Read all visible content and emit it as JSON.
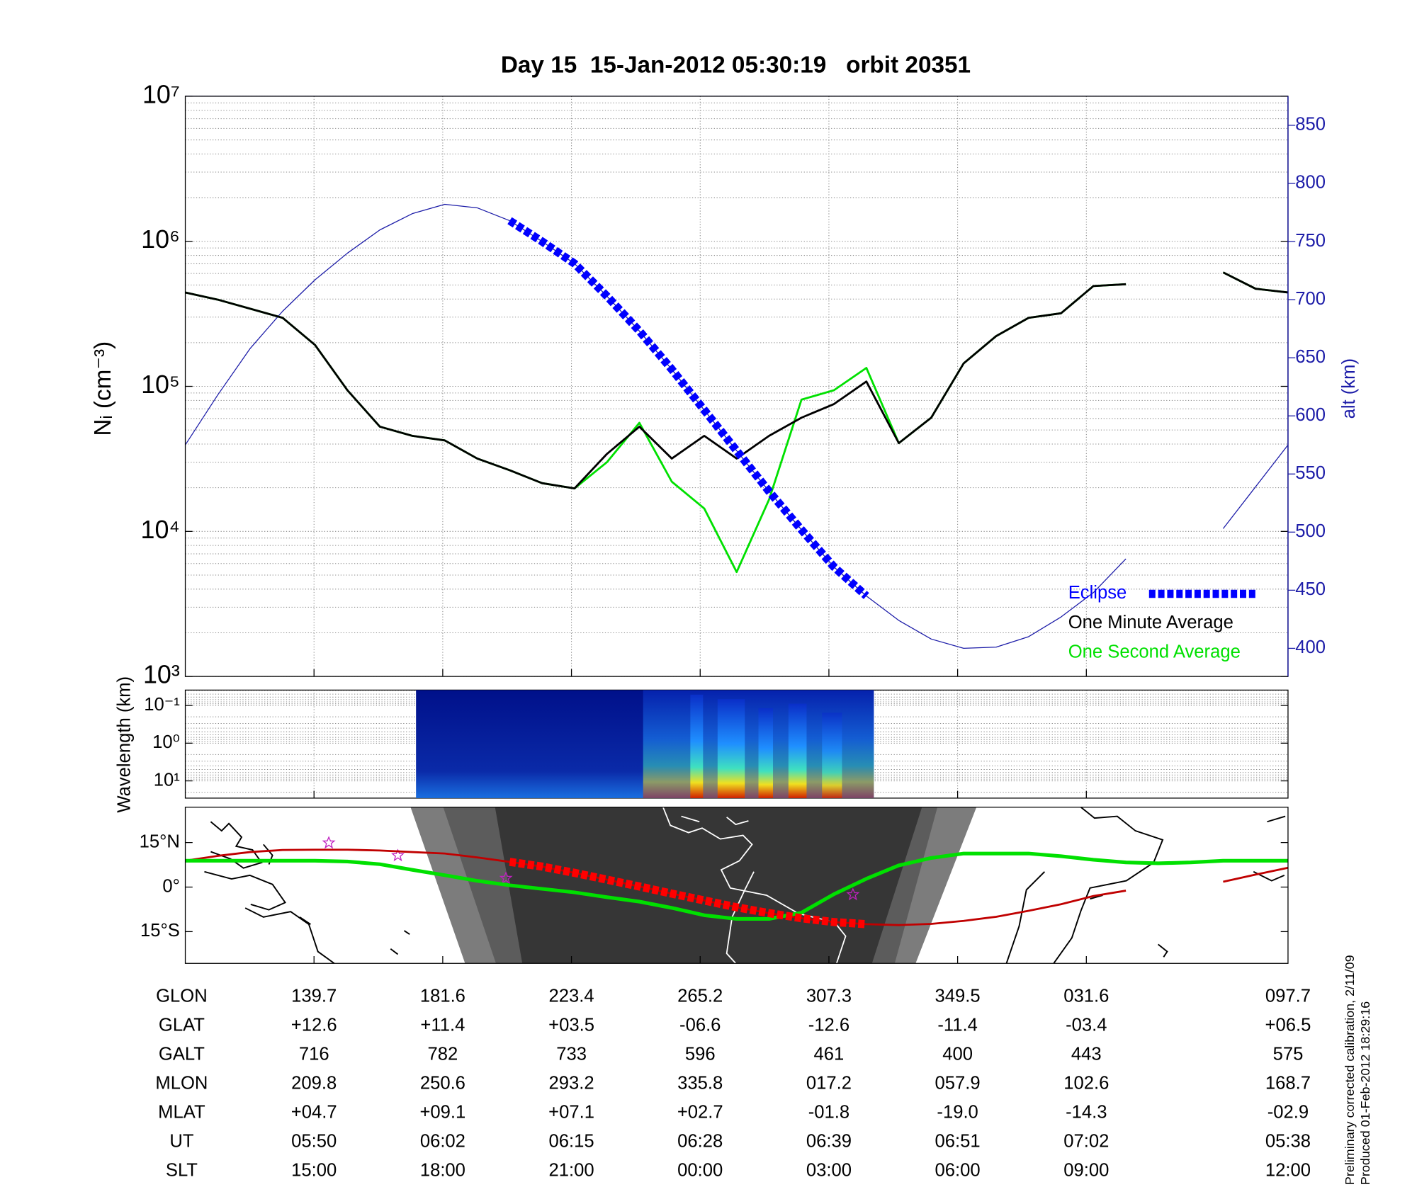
{
  "chart_data": [
    {
      "type": "line",
      "title": "Day 15  15-Jan-2012 05:30:19   orbit 20351",
      "ylabel": "Nᵢ (cm⁻³)",
      "y2label": "alt (km)",
      "yscale": "log",
      "ylim": [
        1000,
        10000000
      ],
      "yticks": [
        {
          "value": 1000,
          "label": "10³"
        },
        {
          "value": 10000,
          "label": "10⁴"
        },
        {
          "value": 100000,
          "label": "10⁵"
        },
        {
          "value": 1000000,
          "label": "10⁶"
        },
        {
          "value": 10000000,
          "label": "10⁷"
        }
      ],
      "y2lim": [
        375.8,
        875
      ],
      "y2ticks": [
        400,
        450,
        500,
        550,
        600,
        650,
        700,
        750,
        800,
        850
      ],
      "grid": true,
      "legend": "lower right",
      "series": [
        {
          "color": "#1c1ca8",
          "axis": "y2",
          "values": [
            575,
            618,
            658,
            690,
            717,
            740,
            760,
            774,
            782,
            779,
            768,
            750,
            731,
            703,
            673,
            640,
            605,
            570,
            535,
            502,
            470,
            445,
            424,
            408,
            400,
            401,
            410,
            427,
            448,
            477,
            null,
            null,
            503,
            539,
            575
          ]
        },
        {
          "name": "One Second Average",
          "color": "#00e000",
          "values": [
            444000,
            396000,
            343000,
            297000,
            193000,
            94000,
            52700,
            45600,
            42400,
            31800,
            26400,
            21500,
            19800,
            30000,
            56000,
            22000,
            14400,
            5250,
            16600,
            81000,
            94000,
            134000,
            40600,
            60800,
            144000,
            222000,
            297000,
            319000,
            492000,
            506000,
            null,
            null,
            610000,
            471000,
            444000
          ]
        },
        {
          "name": "One Minute Average",
          "color": "#000000",
          "values": [
            444000,
            396000,
            343000,
            297000,
            193000,
            94000,
            52700,
            45600,
            42400,
            31800,
            26400,
            21500,
            19800,
            34200,
            52700,
            31800,
            45600,
            31800,
            45600,
            60800,
            75500,
            108000,
            40600,
            60800,
            144000,
            222000,
            297000,
            319000,
            492000,
            506000,
            null,
            null,
            610000,
            471000,
            444000
          ]
        },
        {
          "name": "Eclipse",
          "color": "#0000ff",
          "axis": "y2",
          "style": "dotted",
          "values": [
            null,
            null,
            null,
            null,
            null,
            null,
            null,
            null,
            null,
            null,
            768,
            750,
            731,
            703,
            673,
            640,
            605,
            570,
            535,
            502,
            470,
            445,
            null,
            null,
            null,
            null,
            null,
            null,
            null,
            null,
            null,
            null,
            null,
            null,
            null
          ]
        }
      ],
      "legend_order": [
        "Eclipse",
        "One Minute Average",
        "One Second Average"
      ]
    },
    {
      "type": "spectrogram",
      "ylabel": "Wavelength (km)",
      "yscale": "log",
      "ylim": [
        0.039,
        28.7
      ],
      "yreverse": true,
      "yticks": [
        {
          "value": 0.1,
          "label": "10⁻¹"
        },
        {
          "value": 1,
          "label": "10⁰"
        },
        {
          "value": 10,
          "label": "10¹"
        }
      ],
      "grid": true
    },
    {
      "type": "line",
      "ylim": [
        -25.7,
        26.9
      ],
      "yticks": [
        {
          "value": 15,
          "label": "15°N"
        },
        {
          "value": 0,
          "label": "0°"
        },
        {
          "value": -15,
          "label": "15°S"
        }
      ],
      "series": [
        {
          "color": "#c00000",
          "values": [
            8.9,
            10.5,
            11.8,
            12.5,
            12.6,
            12.6,
            12.3,
            11.8,
            11.3,
            10.0,
            8.5,
            6.9,
            4.8,
            2.5,
            0.2,
            -2.2,
            -4.5,
            -6.8,
            -8.8,
            -10.5,
            -11.8,
            -12.5,
            -12.8,
            -12.4,
            -11.4,
            -10.0,
            -8.0,
            -5.8,
            -3.0,
            -1.2,
            null,
            null,
            1.8,
            4.2,
            6.5
          ]
        },
        {
          "color": "#00e000",
          "values": [
            8.9,
            8.9,
            8.9,
            8.9,
            8.9,
            8.6,
            7.7,
            5.8,
            4.0,
            2.1,
            0.6,
            -0.6,
            -1.8,
            -3.4,
            -4.9,
            -7.0,
            -9.5,
            -10.7,
            -10.7,
            -8.6,
            -2.4,
            2.8,
            7.3,
            9.8,
            11.3,
            11.3,
            11.3,
            10.4,
            9.2,
            8.3,
            8.0,
            8.3,
            8.9,
            8.9,
            8.9
          ]
        },
        {
          "color": "#ff0000",
          "style": "dotted",
          "values": [
            null,
            null,
            null,
            null,
            null,
            null,
            null,
            null,
            null,
            null,
            8.5,
            6.9,
            4.8,
            2.5,
            0.2,
            -2.2,
            -4.5,
            -6.8,
            -8.8,
            -10.5,
            -11.8,
            -12.5,
            null,
            null,
            null,
            null,
            null,
            null,
            null,
            null,
            null,
            null,
            null,
            null,
            null
          ]
        }
      ]
    }
  ],
  "table": {
    "rows": [
      [
        "GLON",
        "139.7",
        "181.6",
        "223.4",
        "265.2",
        "307.3",
        "349.5",
        "031.6",
        "097.7"
      ],
      [
        "GLAT",
        "+12.6",
        "+11.4",
        "+03.5",
        "-06.6",
        "-12.6",
        "-11.4",
        "-03.4",
        "+06.5"
      ],
      [
        "GALT",
        "716",
        "782",
        "733",
        "596",
        "461",
        "400",
        "443",
        "575"
      ],
      [
        "MLON",
        "209.8",
        "250.6",
        "293.2",
        "335.8",
        "017.2",
        "057.9",
        "102.6",
        "168.7"
      ],
      [
        "MLAT",
        "+04.7",
        "+09.1",
        "+07.1",
        "+02.7",
        "-01.8",
        "-19.0",
        "-14.3",
        "-02.9"
      ],
      [
        "UT",
        "05:50",
        "06:02",
        "06:15",
        "06:28",
        "06:39",
        "06:51",
        "07:02",
        "05:38"
      ],
      [
        "SLT",
        "15:00",
        "18:00",
        "21:00",
        "00:00",
        "03:00",
        "06:00",
        "09:00",
        "12:00"
      ]
    ]
  },
  "notes": [
    "Preliminary corrected calibration, 2/11/09",
    "Produced 01-Feb-2012 18:29:16"
  ]
}
